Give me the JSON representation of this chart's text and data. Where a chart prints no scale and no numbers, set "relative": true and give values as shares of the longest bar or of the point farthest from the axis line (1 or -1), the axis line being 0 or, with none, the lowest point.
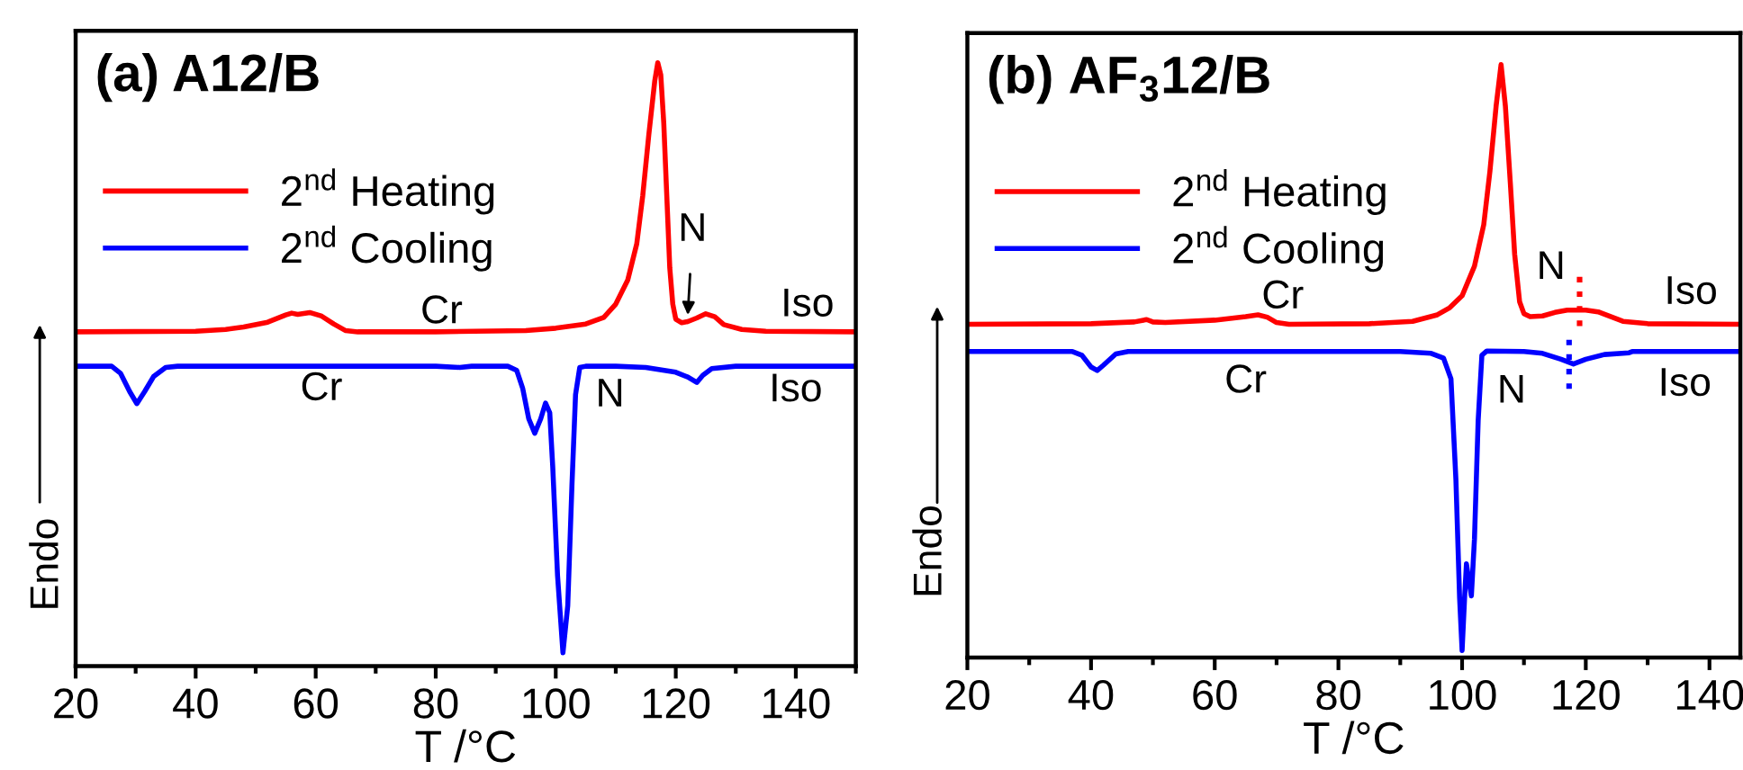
{
  "chart_data": [
    {
      "type": "line",
      "title": "(a) A12/B",
      "xlabel": "T /°C",
      "ylabel": "Endo",
      "relative": true,
      "legend": "top left",
      "line_style": "solid",
      "tick_labels": "x",
      "xlim": [
        20,
        150
      ],
      "xticks": [
        20,
        {
          "value": 30,
          "label": null
        },
        40,
        {
          "value": 50,
          "label": null
        },
        60,
        {
          "value": 70,
          "label": null
        },
        80,
        {
          "value": 90,
          "label": null
        },
        100,
        {
          "value": 110,
          "label": null
        },
        120,
        {
          "value": 130,
          "label": null
        },
        140,
        {
          "value": 150,
          "label": null
        }
      ],
      "series": [
        {
          "name": "2$^{nd}$ Heating",
          "color": "#ff0000",
          "x": [
            20,
            40,
            45,
            48,
            52,
            55,
            56,
            57,
            59,
            61,
            63,
            65,
            67,
            80,
            95,
            100,
            105,
            108,
            110,
            112,
            113.5,
            114.5,
            115.5,
            116.5,
            117,
            117.5,
            118,
            118.5,
            119,
            119.5,
            120,
            121,
            122,
            123.5,
            125,
            126.5,
            128,
            131,
            135,
            150
          ],
          "values": [
            0.554,
            0.555,
            0.558,
            0.562,
            0.57,
            0.582,
            0.585,
            0.583,
            0.586,
            0.58,
            0.567,
            0.556,
            0.554,
            0.554,
            0.556,
            0.56,
            0.567,
            0.578,
            0.6,
            0.64,
            0.7,
            0.78,
            0.88,
            0.97,
            1.0,
            0.98,
            0.9,
            0.78,
            0.66,
            0.6,
            0.575,
            0.569,
            0.571,
            0.577,
            0.584,
            0.579,
            0.566,
            0.558,
            0.555,
            0.554
          ]
        },
        {
          "name": "2$^{nd}$ Cooling",
          "color": "#0000ff",
          "x": [
            20,
            26,
            27.5,
            29,
            30.2,
            31.5,
            33,
            35,
            37,
            80,
            84,
            86,
            92,
            93.5,
            94.5,
            95.5,
            96.5,
            97.5,
            98.3,
            99,
            99.5,
            100.3,
            101.2,
            102,
            102.7,
            103.3,
            104,
            105,
            110,
            115,
            120,
            122,
            123.5,
            124.5,
            126,
            130,
            150
          ],
          "values": [
            0.497,
            0.497,
            0.485,
            0.455,
            0.435,
            0.455,
            0.48,
            0.495,
            0.497,
            0.497,
            0.495,
            0.497,
            0.497,
            0.49,
            0.46,
            0.41,
            0.386,
            0.41,
            0.436,
            0.42,
            0.33,
            0.15,
            0.022,
            0.1,
            0.3,
            0.45,
            0.495,
            0.497,
            0.497,
            0.495,
            0.487,
            0.479,
            0.47,
            0.482,
            0.493,
            0.497,
            0.497
          ]
        }
      ],
      "annotations": [
        "Cr",
        "Iso",
        {
          "text": "N",
          "x": 122,
          "y": 0.582
        },
        "Cr",
        "N",
        "Iso"
      ]
    },
    {
      "type": "line",
      "title": "(b) AF$_{3}$12/B",
      "xlabel": "T /°C",
      "ylabel": "Endo",
      "relative": true,
      "legend": "top left",
      "line_style": "solid",
      "tick_labels": "x",
      "xlim": [
        20,
        145
      ],
      "xticks": [
        20,
        {
          "value": 30,
          "label": null
        },
        40,
        {
          "value": 50,
          "label": null
        },
        60,
        {
          "value": 70,
          "label": null
        },
        80,
        {
          "value": 90,
          "label": null
        },
        100,
        {
          "value": 110,
          "label": null
        },
        120,
        {
          "value": 130,
          "label": null
        },
        140
      ],
      "series": [
        {
          "name": "2$^{nd}$ Heating",
          "color": "#ff0000",
          "x": [
            20,
            40,
            47,
            49,
            50,
            52,
            60,
            65,
            67,
            68.5,
            70,
            72,
            85,
            92,
            96,
            98,
            100,
            102,
            103.5,
            104.5,
            105.5,
            106.3,
            107,
            107.8,
            108.5,
            109.3,
            110,
            111,
            113,
            115,
            117,
            120,
            122,
            124,
            126,
            130,
            145
          ],
          "values": [
            0.562,
            0.563,
            0.566,
            0.57,
            0.566,
            0.565,
            0.569,
            0.575,
            0.578,
            0.574,
            0.565,
            0.562,
            0.563,
            0.567,
            0.578,
            0.59,
            0.61,
            0.66,
            0.73,
            0.82,
            0.93,
            1.0,
            0.93,
            0.8,
            0.68,
            0.6,
            0.58,
            0.575,
            0.576,
            0.582,
            0.586,
            0.586,
            0.583,
            0.575,
            0.567,
            0.563,
            0.562
          ]
        },
        {
          "name": "2$^{nd}$ Cooling",
          "color": "#0000ff",
          "x": [
            20,
            37,
            38.5,
            40,
            41,
            42,
            44,
            46,
            90,
            95,
            97,
            98.2,
            99,
            99.6,
            100,
            100.4,
            100.7,
            101.1,
            101.5,
            102,
            102.6,
            103.2,
            104,
            110,
            113,
            116,
            118,
            120,
            123,
            127,
            127.5,
            145
          ],
          "values": [
            0.516,
            0.516,
            0.51,
            0.49,
            0.484,
            0.493,
            0.512,
            0.516,
            0.516,
            0.513,
            0.505,
            0.47,
            0.3,
            0.1,
            0.012,
            0.1,
            0.158,
            0.13,
            0.104,
            0.2,
            0.4,
            0.51,
            0.517,
            0.516,
            0.513,
            0.503,
            0.495,
            0.503,
            0.511,
            0.514,
            0.516,
            0.516
          ]
        },
        {
          "color": "#ff0000",
          "line_style": "dotted",
          "x": [
            119,
            119
          ],
          "values": [
            0.642,
            0.552
          ]
        },
        {
          "color": "#0000ff",
          "line_style": "dotted",
          "x": [
            117.3,
            117.3
          ],
          "values": [
            0.536,
            0.448
          ]
        }
      ],
      "annotations": [
        "Cr",
        "N",
        "Iso",
        "Cr",
        "N",
        "Iso"
      ]
    }
  ]
}
